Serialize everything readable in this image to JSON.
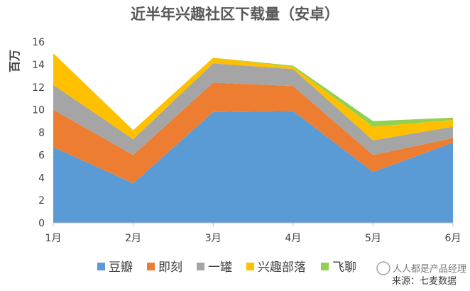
{
  "chart_data": {
    "type": "area",
    "stacked": true,
    "title": "近半年兴趣社区下载量（安卓）",
    "ylabel": "百万",
    "xlabel": "",
    "categories": [
      "1月",
      "2月",
      "3月",
      "4月",
      "5月",
      "6月"
    ],
    "ylim": [
      0,
      16
    ],
    "yticks": [
      "0",
      "2",
      "4",
      "6",
      "8",
      "10",
      "12",
      "14",
      "16"
    ],
    "grid": false,
    "legend_position": "bottom",
    "series": [
      {
        "name": "豆瓣",
        "color": "#5B9BD5",
        "values": [
          6.7,
          3.5,
          9.8,
          9.9,
          4.5,
          7.1
        ]
      },
      {
        "name": "即刻",
        "color": "#ED7D31",
        "values": [
          3.3,
          2.5,
          2.6,
          2.2,
          1.5,
          0.4
        ]
      },
      {
        "name": "一罐",
        "color": "#A5A5A5",
        "values": [
          2.2,
          1.4,
          1.7,
          1.5,
          1.3,
          1.0
        ]
      },
      {
        "name": "兴趣部落",
        "color": "#FFC000",
        "values": [
          2.8,
          0.8,
          0.5,
          0.2,
          1.2,
          0.6
        ]
      },
      {
        "name": "飞聊",
        "color": "#92D050",
        "values": [
          0,
          0,
          0,
          0.1,
          0.5,
          0.2
        ]
      }
    ]
  },
  "watermark": {
    "line1": "人人都是产品经理",
    "line2": "来源：七麦数据"
  }
}
